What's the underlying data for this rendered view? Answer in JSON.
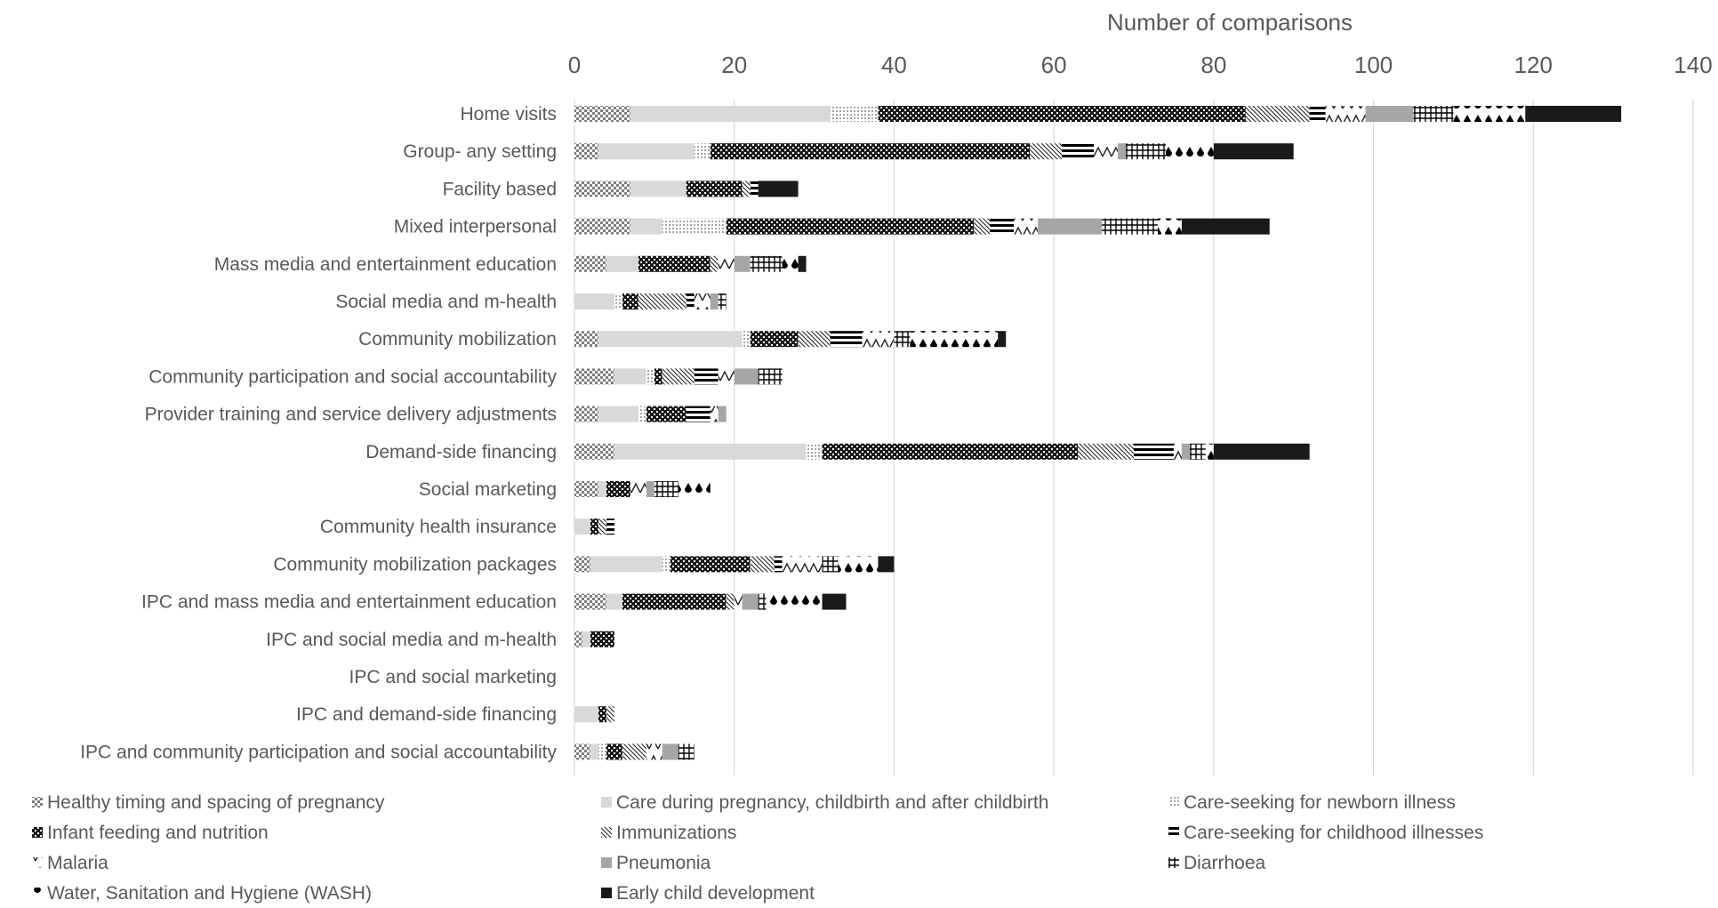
{
  "chart_data": {
    "type": "bar",
    "orientation": "horizontal",
    "stacked": true,
    "title": "",
    "xlabel": "Number of comparisons",
    "ylabel": "",
    "xlim": [
      0,
      140
    ],
    "xticks": [
      0,
      20,
      40,
      60,
      80,
      100,
      120,
      140
    ],
    "x_axis_position": "top",
    "grid": "vertical",
    "legend_position": "bottom",
    "categories": [
      "Home visits",
      "Group- any setting",
      "Facility based",
      "Mixed interpersonal",
      "Mass media and entertainment education",
      "Social media and m-health",
      "Community mobilization",
      "Community participation  and social accountability",
      "Provider training and service delivery adjustments",
      "Demand-side financing",
      "Social marketing",
      "Community health insurance",
      "Community mobilization packages",
      "IPC and mass media and entertainment education",
      "IPC and social media and m-health",
      "IPC and social marketing",
      "IPC and demand-side financing",
      "IPC and community participation and social accountability"
    ],
    "series": [
      {
        "name": "Healthy timing and spacing of pregnancy",
        "pattern": "checker",
        "values": [
          7,
          3,
          7,
          7,
          4,
          0,
          3,
          5,
          3,
          5,
          3,
          0,
          2,
          4,
          1,
          0,
          0,
          2
        ]
      },
      {
        "name": "Care during pregnancy, childbirth and after childbirth",
        "pattern": "light-solid",
        "values": [
          25,
          12,
          7,
          4,
          4,
          5,
          18,
          4,
          5,
          24,
          1,
          2,
          9,
          2,
          1,
          0,
          3,
          1
        ]
      },
      {
        "name": "Care-seeking for newborn illness",
        "pattern": "dots",
        "values": [
          6,
          2,
          0,
          8,
          0,
          1,
          1,
          1,
          1,
          2,
          0,
          0,
          1,
          0,
          0,
          0,
          0,
          1
        ]
      },
      {
        "name": "Infant feeding and nutrition",
        "pattern": "dark-checker",
        "values": [
          46,
          40,
          7,
          31,
          9,
          2,
          6,
          1,
          5,
          32,
          3,
          1,
          10,
          13,
          3,
          0,
          1,
          2
        ]
      },
      {
        "name": "Immunizations",
        "pattern": "diagonal",
        "values": [
          8,
          4,
          1,
          2,
          1,
          6,
          4,
          4,
          0,
          7,
          0,
          1,
          3,
          1,
          0,
          0,
          1,
          3
        ]
      },
      {
        "name": "Care-seeking for childhood illnesses",
        "pattern": "horizontal",
        "values": [
          2,
          4,
          1,
          3,
          0,
          1,
          4,
          3,
          3,
          5,
          0,
          1,
          1,
          0,
          0,
          0,
          0,
          0
        ]
      },
      {
        "name": "Malaria",
        "pattern": "zigzag",
        "values": [
          5,
          3,
          0,
          3,
          2,
          2,
          4,
          2,
          1,
          1,
          2,
          0,
          5,
          1,
          0,
          0,
          0,
          2
        ]
      },
      {
        "name": "Pneumonia",
        "pattern": "gray-solid",
        "values": [
          6,
          1,
          0,
          8,
          2,
          1,
          0,
          3,
          1,
          1,
          1,
          0,
          0,
          2,
          0,
          0,
          0,
          2
        ]
      },
      {
        "name": "Diarrhoea",
        "pattern": "grid",
        "values": [
          5,
          5,
          0,
          7,
          4,
          1,
          2,
          3,
          0,
          2,
          3,
          0,
          2,
          1,
          0,
          0,
          0,
          2
        ]
      },
      {
        "name": "Water, Sanitation and Hygiene (WASH)",
        "pattern": "drops",
        "values": [
          9,
          6,
          0,
          3,
          2,
          0,
          11,
          0,
          0,
          1,
          4,
          0,
          5,
          7,
          0,
          0,
          0,
          0
        ]
      },
      {
        "name": "Early child development",
        "pattern": "black-solid",
        "values": [
          12,
          10,
          5,
          11,
          1,
          0,
          1,
          0,
          0,
          12,
          0,
          0,
          2,
          3,
          0,
          0,
          0,
          0
        ]
      }
    ]
  }
}
